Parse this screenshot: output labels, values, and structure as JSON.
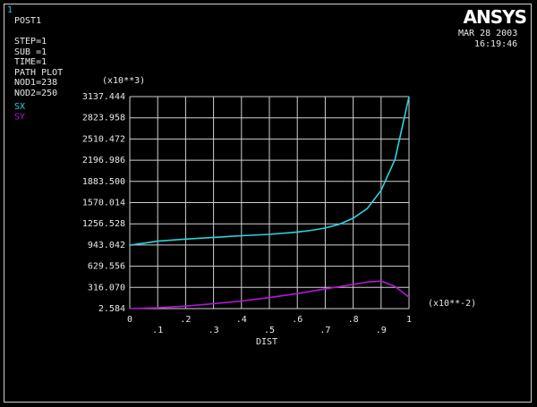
{
  "window_number": "1",
  "logo": "ANSYS",
  "info_lines": [
    "POST1",
    "",
    "STEP=1",
    "SUB =1",
    "TIME=1",
    "PATH PLOT",
    "NOD1=238",
    "NOD2=250"
  ],
  "date": "MAR 28 2003",
  "time": "16:19:46",
  "colors": {
    "background": "#000000",
    "grid": "#d0d0d0",
    "SX": "#2ad4e0",
    "SY": "#b218d6",
    "text": "#e8e8e8"
  },
  "chart_data": {
    "type": "line",
    "xlabel": "DIST",
    "x_multiplier": "(x10**-2)",
    "y_multiplier": "(x10**3)",
    "xlim": [
      0,
      1
    ],
    "ylim": [
      2.584,
      3137.444
    ],
    "x_ticks": [
      "0",
      ".1",
      ".2",
      ".3",
      ".4",
      ".5",
      ".6",
      ".7",
      ".8",
      ".9",
      "1"
    ],
    "y_ticks": [
      "2.584",
      "316.070",
      "629.556",
      "943.042",
      "1256.528",
      "1570.014",
      "1883.500",
      "2196.986",
      "2510.472",
      "2823.958",
      "3137.444"
    ],
    "grid": true,
    "legend_placement": "top-left",
    "series": [
      {
        "name": "SX",
        "x": [
          0,
          0.05,
          0.1,
          0.2,
          0.3,
          0.4,
          0.5,
          0.6,
          0.65,
          0.7,
          0.75,
          0.8,
          0.85,
          0.9,
          0.95,
          1.0
        ],
        "y": [
          940,
          970,
          1000,
          1030,
          1055,
          1080,
          1100,
          1135,
          1160,
          1195,
          1250,
          1340,
          1480,
          1750,
          2210,
          3137
        ]
      },
      {
        "name": "SY",
        "x": [
          0,
          0.1,
          0.2,
          0.3,
          0.4,
          0.5,
          0.6,
          0.7,
          0.8,
          0.85,
          0.9,
          0.95,
          1.0
        ],
        "y": [
          3,
          15,
          40,
          75,
          115,
          165,
          225,
          295,
          360,
          395,
          410,
          330,
          170
        ]
      }
    ]
  }
}
